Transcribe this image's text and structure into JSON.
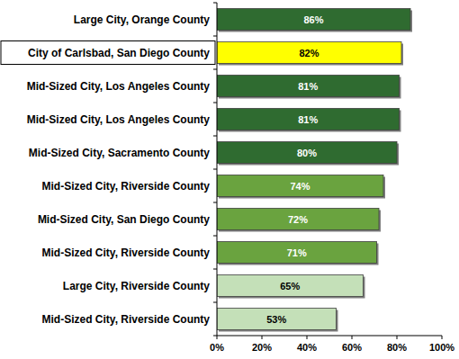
{
  "chart_data": {
    "type": "bar",
    "orientation": "horizontal",
    "categories": [
      "Large City, Orange County",
      "City of Carlsbad, San Diego County",
      "Mid-Sized City, Los Angeles County",
      "Mid-Sized City, Los Angeles County",
      "Mid-Sized City, Sacramento County",
      "Mid-Sized City, Riverside County",
      "Mid-Sized City, San Diego County",
      "Mid-Sized City, Riverside County",
      "Large City, Riverside County",
      "Mid-Sized City, Riverside County"
    ],
    "values": [
      86,
      82,
      81,
      81,
      80,
      74,
      72,
      71,
      65,
      53
    ],
    "value_labels": [
      "86%",
      "82%",
      "81%",
      "81%",
      "80%",
      "74%",
      "72%",
      "71%",
      "65%",
      "53%"
    ],
    "colors": [
      "#2f6b30",
      "#ffff00",
      "#2f6b30",
      "#2f6b30",
      "#2f6b30",
      "#6aa33f",
      "#6aa33f",
      "#6aa33f",
      "#c4e0b8",
      "#c4e0b8"
    ],
    "xlim": [
      0,
      100
    ],
    "xticks": [
      {
        "value": 0,
        "label": "0%"
      },
      {
        "value": 20,
        "label": "20%"
      },
      {
        "value": 40,
        "label": "40%"
      },
      {
        "value": 60,
        "label": "60%"
      },
      {
        "value": 80,
        "label": "80%"
      },
      {
        "value": 100,
        "label": "100%"
      }
    ],
    "data_labels": true,
    "grid": false
  }
}
